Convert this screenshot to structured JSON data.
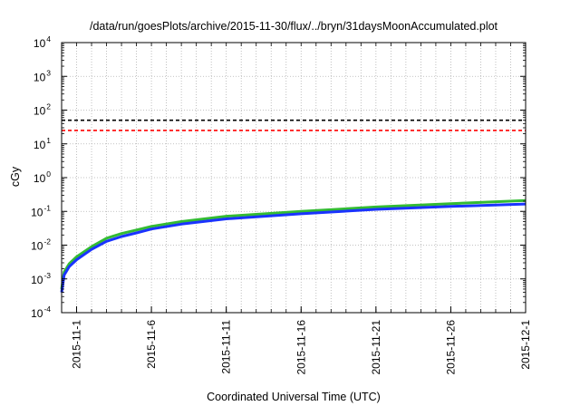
{
  "chart_data": {
    "type": "line",
    "title": "/data/run/goesPlots/archive/2015-11-30/flux/../bryn/31daysMoonAccumulated.plot",
    "xlabel": "Coordinated Universal Time (UTC)",
    "ylabel": "cGy",
    "yscale": "log",
    "ylim": [
      0.0001,
      10000
    ],
    "yticks": [
      {
        "base": "10",
        "exp": "-4",
        "value": 0.0001
      },
      {
        "base": "10",
        "exp": "-3",
        "value": 0.001
      },
      {
        "base": "10",
        "exp": "-2",
        "value": 0.01
      },
      {
        "base": "10",
        "exp": "-1",
        "value": 0.1
      },
      {
        "base": "10",
        "exp": "0",
        "value": 1
      },
      {
        "base": "10",
        "exp": "1",
        "value": 10
      },
      {
        "base": "10",
        "exp": "2",
        "value": 100
      },
      {
        "base": "10",
        "exp": "3",
        "value": 1000
      },
      {
        "base": "10",
        "exp": "4",
        "value": 10000
      }
    ],
    "xlim": [
      "2015-10-31",
      "2015-12-01"
    ],
    "xticks": [
      "2015-11-1",
      "2015-11-6",
      "2015-11-11",
      "2015-11-16",
      "2015-11-21",
      "2015-11-26",
      "2015-12-1"
    ],
    "grid": true,
    "reference_lines": [
      {
        "value": 50,
        "color": "#000000",
        "style": "dashed"
      },
      {
        "value": 25,
        "color": "#ff0000",
        "style": "dashed"
      }
    ],
    "series": [
      {
        "color": "#33bb33",
        "x": [
          "2015-10-31",
          "2015-10-31T04:00",
          "2015-10-31T12:00",
          "2015-11-01",
          "2015-11-02",
          "2015-11-03",
          "2015-11-04",
          "2015-11-05",
          "2015-11-06",
          "2015-11-08",
          "2015-11-11",
          "2015-11-16",
          "2015-11-21",
          "2015-11-26",
          "2015-12-01"
        ],
        "y": [
          0.0005,
          0.0016,
          0.0028,
          0.0045,
          0.009,
          0.016,
          0.022,
          0.028,
          0.036,
          0.05,
          0.072,
          0.1,
          0.135,
          0.17,
          0.21
        ]
      },
      {
        "color": "#1a33ff",
        "x": [
          "2015-10-31",
          "2015-10-31T04:00",
          "2015-10-31T12:00",
          "2015-11-01",
          "2015-11-02",
          "2015-11-03",
          "2015-11-04",
          "2015-11-05",
          "2015-11-06",
          "2015-11-08",
          "2015-11-11",
          "2015-11-16",
          "2015-11-21",
          "2015-11-26",
          "2015-12-01"
        ],
        "y": [
          0.0004,
          0.0013,
          0.0023,
          0.0037,
          0.0075,
          0.013,
          0.018,
          0.023,
          0.03,
          0.042,
          0.06,
          0.085,
          0.115,
          0.14,
          0.165
        ]
      }
    ]
  }
}
